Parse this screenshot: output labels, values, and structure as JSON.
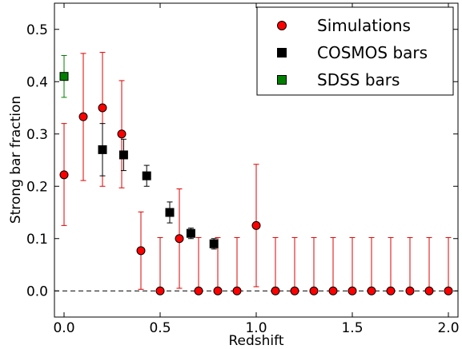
{
  "chart_data": {
    "type": "scatter",
    "xlabel": "Redshift",
    "ylabel": "Strong bar fraction",
    "xlim": [
      -0.05,
      2.05
    ],
    "ylim": [
      -0.05,
      0.55
    ],
    "xticks": [
      "0.0",
      "0.5",
      "1.0",
      "1.5",
      "2.0"
    ],
    "yticks": [
      "0.0",
      "0.1",
      "0.2",
      "0.3",
      "0.4",
      "0.5"
    ],
    "xtick_values": [
      0.0,
      0.5,
      1.0,
      1.5,
      2.0
    ],
    "ytick_values": [
      0.0,
      0.1,
      0.2,
      0.3,
      0.4,
      0.5
    ],
    "reference_line": {
      "y": 0.0,
      "style": "dashed"
    },
    "legend": {
      "position": "top-right"
    },
    "series": [
      {
        "name": "Simulations",
        "marker": "circle",
        "color": "#ff0000",
        "error_color": "#e00000",
        "x": [
          0.0,
          0.1,
          0.2,
          0.3,
          0.4,
          0.5,
          0.6,
          0.7,
          0.8,
          0.9,
          1.0,
          1.1,
          1.2,
          1.3,
          1.4,
          1.5,
          1.6,
          1.7,
          1.8,
          1.9,
          2.0
        ],
        "y": [
          0.222,
          0.333,
          0.35,
          0.3,
          0.077,
          0.0,
          0.1,
          0.0,
          0.0,
          0.0,
          0.125,
          0.0,
          0.0,
          0.0,
          0.0,
          0.0,
          0.0,
          0.0,
          0.0,
          0.0,
          0.0
        ],
        "ylow": [
          0.125,
          0.211,
          0.2,
          0.197,
          0.003,
          0.0,
          0.005,
          0.0,
          0.0,
          0.0,
          0.008,
          0.0,
          0.0,
          0.0,
          0.0,
          0.0,
          0.0,
          0.0,
          0.0,
          0.0,
          0.0
        ],
        "yhigh": [
          0.32,
          0.454,
          0.456,
          0.402,
          0.151,
          0.102,
          0.195,
          0.102,
          0.102,
          0.102,
          0.242,
          0.102,
          0.102,
          0.102,
          0.102,
          0.102,
          0.102,
          0.102,
          0.102,
          0.102,
          0.102
        ]
      },
      {
        "name": "COSMOS bars",
        "marker": "square",
        "color": "#000000",
        "error_color": "#000000",
        "x": [
          0.2,
          0.31,
          0.43,
          0.55,
          0.66,
          0.78
        ],
        "y": [
          0.27,
          0.26,
          0.22,
          0.15,
          0.11,
          0.09
        ],
        "ylow": [
          0.22,
          0.23,
          0.2,
          0.13,
          0.1,
          0.08
        ],
        "yhigh": [
          0.32,
          0.29,
          0.24,
          0.17,
          0.12,
          0.1
        ]
      },
      {
        "name": "SDSS bars",
        "marker": "square",
        "color": "#007f00",
        "error_color": "#007f00",
        "x": [
          0.0
        ],
        "y": [
          0.41
        ],
        "ylow": [
          0.37
        ],
        "yhigh": [
          0.45
        ]
      }
    ]
  }
}
